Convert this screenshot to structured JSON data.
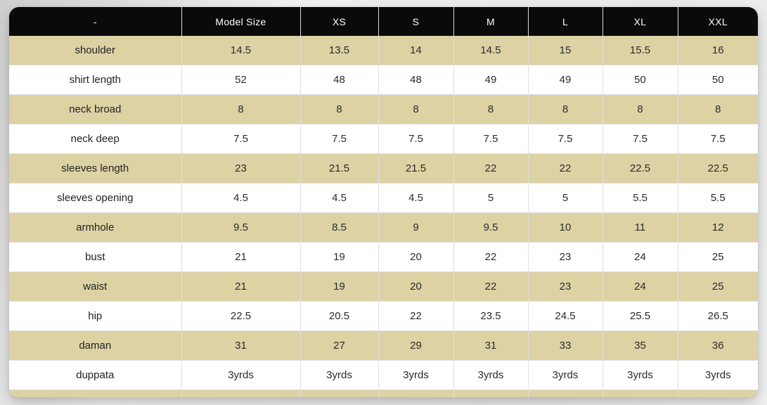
{
  "colors": {
    "header_bg": "#0a0a0a",
    "header_text": "#ffffff",
    "stripe_tan": "#ddd2a4",
    "row_white": "#ffffff",
    "grid_line": "#e0e0e0",
    "page_bg": "#e9e9e9",
    "body_text": "#2b2b2b"
  },
  "chart_data": {
    "type": "table",
    "columns": [
      "-",
      "Model Size",
      "XS",
      "S",
      "M",
      "L",
      "XL",
      "XXL"
    ],
    "rows": [
      [
        "shoulder",
        "14.5",
        "13.5",
        "14",
        "14.5",
        "15",
        "15.5",
        "16"
      ],
      [
        "shirt length",
        "52",
        "48",
        "48",
        "49",
        "49",
        "50",
        "50"
      ],
      [
        "neck broad",
        "8",
        "8",
        "8",
        "8",
        "8",
        "8",
        "8"
      ],
      [
        "neck deep",
        "7.5",
        "7.5",
        "7.5",
        "7.5",
        "7.5",
        "7.5",
        "7.5"
      ],
      [
        "sleeves length",
        "23",
        "21.5",
        "21.5",
        "22",
        "22",
        "22.5",
        "22.5"
      ],
      [
        "sleeves opening",
        "4.5",
        "4.5",
        "4.5",
        "5",
        "5",
        "5.5",
        "5.5"
      ],
      [
        "armhole",
        "9.5",
        "8.5",
        "9",
        "9.5",
        "10",
        "11",
        "12"
      ],
      [
        "bust",
        "21",
        "19",
        "20",
        "22",
        "23",
        "24",
        "25"
      ],
      [
        "waist",
        "21",
        "19",
        "20",
        "22",
        "23",
        "24",
        "25"
      ],
      [
        "hip",
        "22.5",
        "20.5",
        "22",
        "23.5",
        "24.5",
        "25.5",
        "26.5"
      ],
      [
        "daman",
        "31",
        "27",
        "29",
        "31",
        "33",
        "35",
        "36"
      ],
      [
        "duppata",
        "3yrds",
        "3yrds",
        "3yrds",
        "3yrds",
        "3yrds",
        "3yrds",
        "3yrds"
      ]
    ],
    "layout_hints": {
      "striping": "rows alternate tan/white starting with tan",
      "header_style": "black bar with white separators, rounded top corners",
      "footer": "partial tan row sliver with rounded bottom corners"
    }
  }
}
